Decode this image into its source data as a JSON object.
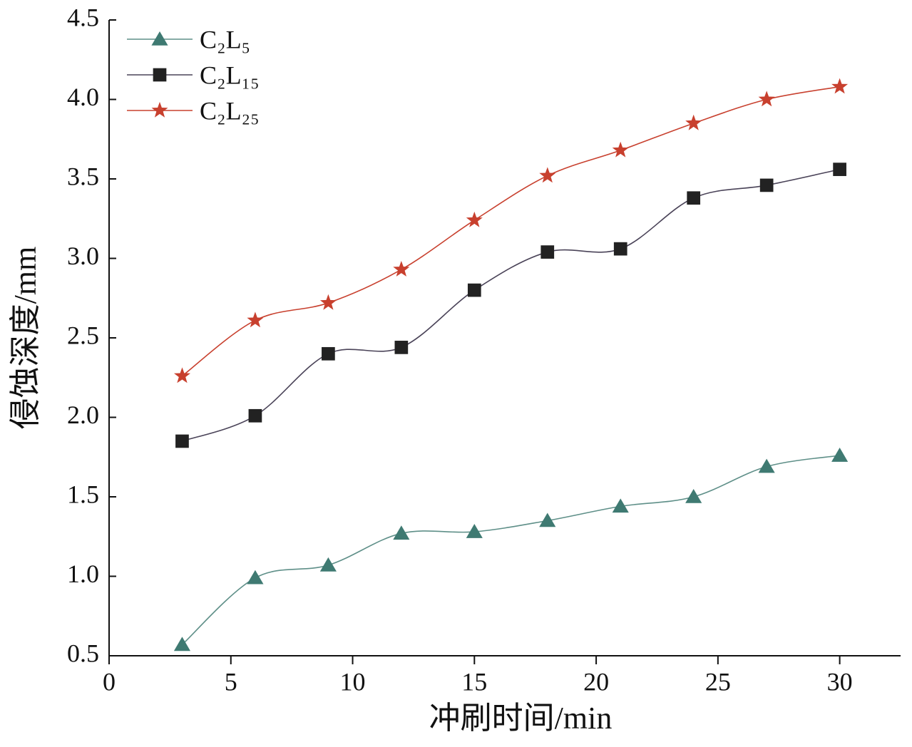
{
  "chart_data": {
    "type": "line",
    "x_label": "冲刷时间/min",
    "y_label": "侵蚀深度/mm",
    "x": [
      3,
      6,
      9,
      12,
      15,
      18,
      21,
      24,
      27,
      30
    ],
    "series": [
      {
        "name": "C₂L₅",
        "color": "#3f7a72",
        "line_color": "#5e8f88",
        "marker": "triangle",
        "values": [
          0.57,
          0.99,
          1.07,
          1.27,
          1.28,
          1.35,
          1.44,
          1.5,
          1.69,
          1.76
        ]
      },
      {
        "name": "C₂L₁₅",
        "color": "#222222",
        "line_color": "#4a4358",
        "marker": "square",
        "values": [
          1.85,
          2.01,
          2.4,
          2.44,
          2.8,
          3.04,
          3.06,
          3.38,
          3.46,
          3.56
        ]
      },
      {
        "name": "C₂L₂₅",
        "color": "#c8402e",
        "line_color": "#c8402e",
        "marker": "star",
        "values": [
          2.26,
          2.61,
          2.72,
          2.93,
          3.24,
          3.52,
          3.68,
          3.85,
          4.0,
          4.08
        ]
      }
    ],
    "xlim": [
      0,
      32.5
    ],
    "xticks": [
      0,
      5,
      10,
      15,
      20,
      25,
      30
    ],
    "ylim": [
      0.5,
      4.5
    ],
    "yticks": [
      0.5,
      {
        "value": 1.0,
        "label": "1.0"
      },
      1.5,
      {
        "value": 2.0,
        "label": "2.0"
      },
      2.5,
      {
        "value": 3.0,
        "label": "3.0"
      },
      3.5,
      {
        "value": 4.0,
        "label": "4.0"
      },
      4.5
    ],
    "smooth": true,
    "legend": "upper-left"
  }
}
